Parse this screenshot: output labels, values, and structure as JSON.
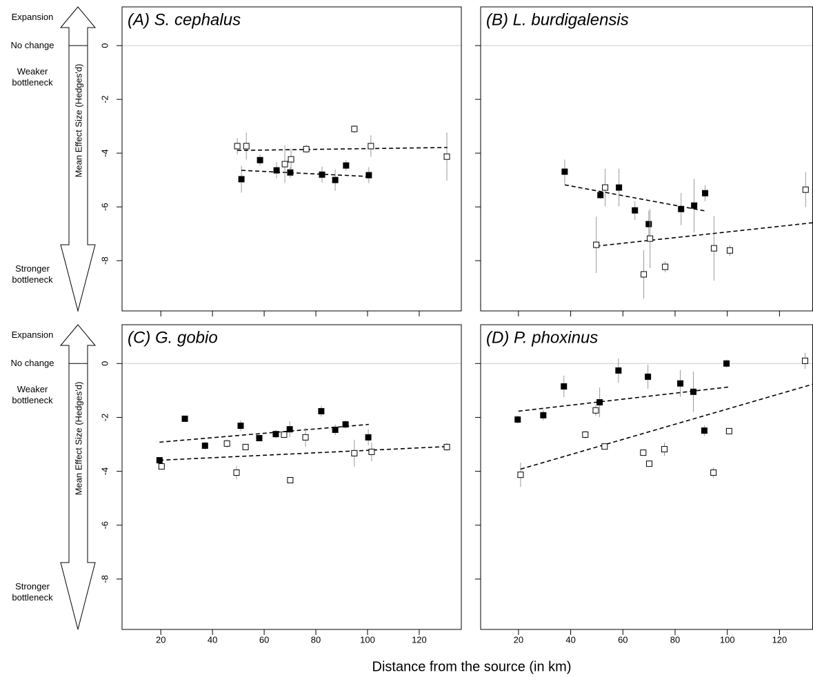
{
  "xlabel": "Distance from the source (in km)",
  "chart_data": [
    {
      "type": "scatter",
      "title": "(A) S. cephalus",
      "ylabel": "Mean Effect Size (Hedges'd)",
      "side_labels": [
        "Expansion",
        "No change",
        "Weaker bottleneck",
        "Stronger bottleneck"
      ],
      "xlim": [
        5,
        136.3
      ],
      "ylim": [
        -9.87,
        1.44
      ],
      "xticks": [
        20,
        40,
        60,
        80,
        100,
        120
      ],
      "yticks": [
        -8,
        -6,
        -4,
        -2,
        0
      ],
      "show_xtick_labels": false,
      "show_ytick_labels": true,
      "hline": 0,
      "series": [
        {
          "marker": "filled-square",
          "color": "#000000",
          "x": [
            51.2,
            58.4,
            64.8,
            70.1,
            82.4,
            87.5,
            91.7,
            100.5
          ],
          "values": [
            -4.97,
            -4.26,
            -4.64,
            -4.72,
            -4.8,
            -5.0,
            -4.46,
            -4.82
          ],
          "errors": [
            0.5,
            0.2,
            0.3,
            0.2,
            0.3,
            0.4,
            0.2,
            0.3
          ],
          "trend": {
            "x": [
              51.2,
              100.5
            ],
            "y": [
              -4.64,
              -4.87
            ]
          }
        },
        {
          "marker": "open-square",
          "color": "#000000",
          "x": [
            49.6,
            53.1,
            68.0,
            70.4,
            76.3,
            94.9,
            101.3,
            130.7
          ],
          "values": [
            -3.74,
            -3.74,
            -4.41,
            -4.23,
            -3.85,
            -3.1,
            -3.74,
            -4.13
          ],
          "errors": [
            0.3,
            0.5,
            0.7,
            0.4,
            0.15,
            0.15,
            0.4,
            0.9
          ],
          "trend": {
            "x": [
              49.6,
              130.9
            ],
            "y": [
              -3.9,
              -3.79
            ]
          }
        }
      ]
    },
    {
      "type": "scatter",
      "title": "(B) L. burdigalensis",
      "xlim": [
        5.5,
        132.7
      ],
      "ylim": [
        -9.87,
        1.44
      ],
      "xticks": [
        20,
        40,
        60,
        80,
        100,
        120
      ],
      "yticks": [
        -8,
        -6,
        -4,
        -2,
        0
      ],
      "show_xtick_labels": false,
      "show_ytick_labels": false,
      "hline": 0,
      "series": [
        {
          "marker": "filled-square",
          "color": "#000000",
          "x": [
            37.7,
            51.4,
            58.5,
            64.6,
            69.9,
            82.3,
            87.3,
            91.5
          ],
          "values": [
            -4.69,
            -5.56,
            -5.28,
            -6.13,
            -6.64,
            -6.08,
            -5.95,
            -5.49
          ],
          "errors": [
            0.45,
            0.15,
            0.7,
            0.35,
            0.5,
            0.6,
            1.0,
            0.3
          ],
          "trend": {
            "x": [
              37.7,
              91.5
            ],
            "y": [
              -5.18,
              -6.15
            ]
          }
        },
        {
          "marker": "open-square",
          "color": "#000000",
          "x": [
            49.8,
            53.2,
            68.0,
            70.4,
            76.2,
            94.9,
            101.0,
            130.0
          ],
          "values": [
            -7.41,
            -5.28,
            -8.51,
            -7.18,
            -8.23,
            -7.54,
            -7.62,
            -5.36
          ],
          "errors": [
            1.05,
            0.7,
            0.9,
            1.1,
            0.2,
            1.2,
            0.2,
            0.65
          ],
          "trend": {
            "x": [
              49.8,
              132.7
            ],
            "y": [
              -7.46,
              -6.59
            ]
          }
        }
      ]
    },
    {
      "type": "scatter",
      "title": "(C) G. gobio",
      "ylabel": "Mean Effect Size (Hedges'd)",
      "side_labels": [
        "Expansion",
        "No change",
        "Weaker bottleneck",
        "Stronger bottleneck"
      ],
      "xlim": [
        5,
        136.3
      ],
      "ylim": [
        -9.87,
        1.44
      ],
      "xticks": [
        20,
        40,
        60,
        80,
        100,
        120
      ],
      "yticks": [
        -8,
        -6,
        -4,
        -2,
        0
      ],
      "show_xtick_labels": true,
      "show_ytick_labels": true,
      "hline": 0,
      "series": [
        {
          "marker": "filled-square",
          "color": "#000000",
          "x": [
            19.5,
            29.3,
            37.1,
            50.9,
            58.1,
            64.5,
            69.9,
            82.1,
            87.5,
            91.5,
            100.3
          ],
          "values": [
            -3.59,
            -2.05,
            -3.05,
            -2.31,
            -2.77,
            -2.62,
            -2.44,
            -1.77,
            -2.46,
            -2.26,
            -2.74
          ],
          "errors": [
            0.1,
            0.1,
            0.15,
            0.2,
            0.1,
            0.15,
            0.3,
            0.2,
            0.2,
            0.15,
            0.3
          ],
          "trend": {
            "x": [
              19.5,
              100.5
            ],
            "y": [
              -2.92,
              -2.26
            ]
          }
        },
        {
          "marker": "open-square",
          "color": "#000000",
          "x": [
            20.3,
            45.6,
            49.3,
            52.8,
            67.7,
            70.1,
            76.0,
            94.9,
            101.6,
            130.7
          ],
          "values": [
            -3.82,
            -2.97,
            -4.05,
            -3.1,
            -2.64,
            -4.33,
            -2.74,
            -3.33,
            -3.28,
            -3.1
          ],
          "errors": [
            0.1,
            0.15,
            0.25,
            0.1,
            0.1,
            0.1,
            0.35,
            0.5,
            0.35,
            0.15
          ],
          "trend": {
            "x": [
              19.5,
              131.2
            ],
            "y": [
              -3.59,
              -3.08
            ]
          }
        }
      ]
    },
    {
      "type": "scatter",
      "title": "(D) P. phoxinus",
      "xlim": [
        5.5,
        132.7
      ],
      "ylim": [
        -9.87,
        1.44
      ],
      "xticks": [
        20,
        40,
        60,
        80,
        100,
        120
      ],
      "yticks": [
        -8,
        -6,
        -4,
        -2,
        0
      ],
      "show_xtick_labels": true,
      "show_ytick_labels": false,
      "hline": 0,
      "series": [
        {
          "marker": "filled-square",
          "color": "#000000",
          "x": [
            19.7,
            29.5,
            37.4,
            51.1,
            58.3,
            69.6,
            82.0,
            87.0,
            91.2,
            99.7
          ],
          "values": [
            -2.08,
            -1.92,
            -0.85,
            -1.44,
            -0.26,
            -0.49,
            -0.74,
            -1.05,
            -2.49,
            0.0
          ],
          "errors": [
            0.15,
            0.2,
            0.4,
            0.55,
            0.45,
            0.45,
            0.5,
            0.75,
            0.2,
            0.15
          ],
          "trend": {
            "x": [
              20,
              100.7
            ],
            "y": [
              -1.77,
              -0.87
            ]
          }
        },
        {
          "marker": "open-square",
          "color": "#000000",
          "x": [
            20.8,
            45.6,
            49.6,
            53.0,
            67.8,
            70.1,
            75.9,
            94.7,
            100.7,
            129.8
          ],
          "values": [
            -4.13,
            -2.64,
            -1.74,
            -3.08,
            -3.31,
            -3.72,
            -3.18,
            -4.05,
            -2.51,
            0.1
          ],
          "errors": [
            0.45,
            0.15,
            0.2,
            0.1,
            0.1,
            0.1,
            0.25,
            0.2,
            0.1,
            0.3
          ],
          "trend": {
            "x": [
              20.8,
              132.7
            ],
            "y": [
              -3.92,
              -0.77
            ]
          }
        }
      ]
    }
  ]
}
